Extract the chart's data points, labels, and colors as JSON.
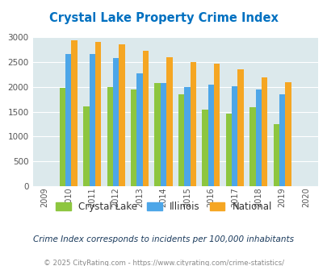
{
  "title": "Crystal Lake Property Crime Index",
  "years": [
    2009,
    2010,
    2011,
    2012,
    2013,
    2014,
    2015,
    2016,
    2017,
    2018,
    2019,
    2020
  ],
  "crystal_lake": [
    null,
    1975,
    1615,
    2000,
    1955,
    2085,
    1855,
    1545,
    1455,
    1590,
    1245,
    null
  ],
  "illinois": [
    null,
    2670,
    2670,
    2580,
    2280,
    2080,
    1990,
    2045,
    2010,
    1940,
    1845,
    null
  ],
  "national": [
    null,
    2940,
    2910,
    2860,
    2730,
    2600,
    2495,
    2460,
    2360,
    2185,
    2090,
    null
  ],
  "crystal_lake_color": "#8dc63f",
  "illinois_color": "#4da6e8",
  "national_color": "#f5a623",
  "bg_color": "#dce9ec",
  "title_color": "#0070c0",
  "subtitle": "Crime Index corresponds to incidents per 100,000 inhabitants",
  "footer": "© 2025 CityRating.com - https://www.cityrating.com/crime-statistics/",
  "ylim": [
    0,
    3000
  ],
  "yticks": [
    0,
    500,
    1000,
    1500,
    2000,
    2500,
    3000
  ],
  "bar_width": 0.25,
  "figsize": [
    4.06,
    3.3
  ],
  "dpi": 100
}
